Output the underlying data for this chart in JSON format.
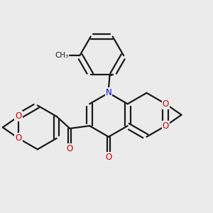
{
  "bg_color": "#ebebeb",
  "bond_color": "#1a1a1a",
  "nitrogen_color": "#0000cc",
  "oxygen_color": "#cc0000",
  "lw": 1.6,
  "dbo": 0.13,
  "figsize": [
    3.0,
    3.0
  ],
  "dpi": 100,
  "xlim": [
    0,
    10
  ],
  "ylim": [
    0,
    10
  ],
  "R": 1.05,
  "methyl_label": "CH₃"
}
